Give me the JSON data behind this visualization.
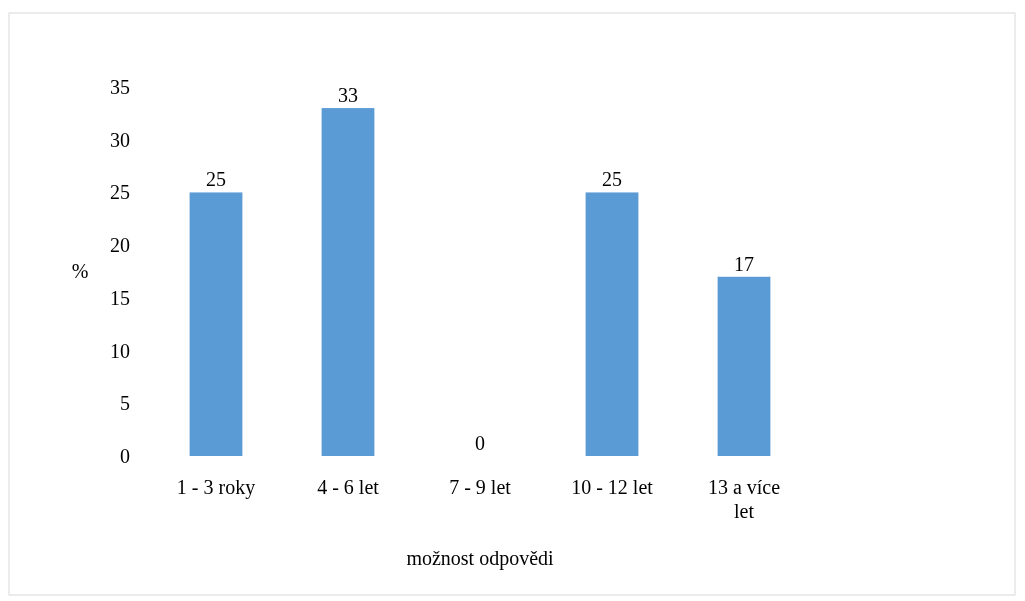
{
  "chart_data": {
    "type": "bar",
    "categories": [
      "1 - 3 roky",
      "4 - 6 let",
      "7 - 9 let",
      "10 - 12 let",
      "13 a více let"
    ],
    "values": [
      25,
      33,
      0,
      25,
      17
    ],
    "color": "#5b9bd5",
    "ylabel": "%",
    "xlabel": "možnost odpovědi",
    "ylim": [
      0,
      35
    ],
    "yticks": [
      0,
      5,
      10,
      15,
      20,
      25,
      30,
      35
    ],
    "data_labels": true
  }
}
